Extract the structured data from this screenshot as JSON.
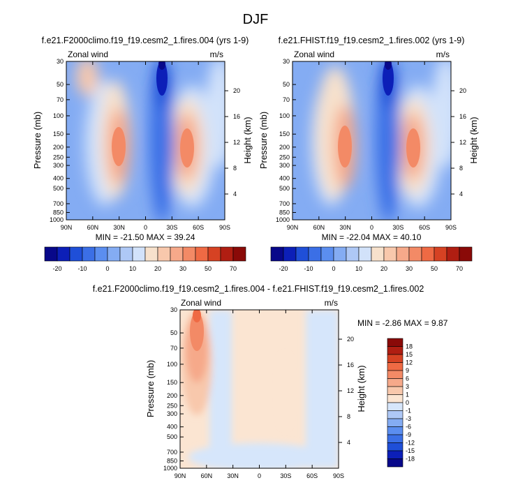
{
  "page_title": "DJF",
  "colors": {
    "panel_levels_palette": [
      "#08088a",
      "#0c1fb8",
      "#1f4fd8",
      "#3b6fe6",
      "#5b8ef0",
      "#84acf3",
      "#aec8f6",
      "#d2e2fa",
      "#f7e1cc",
      "#f8c8ac",
      "#f6a98a",
      "#f38a66",
      "#ef6a44",
      "#d64223",
      "#b01e12",
      "#8a0a08"
    ],
    "diff_levels_palette": [
      "#08088a",
      "#0c1fb8",
      "#1f4fd8",
      "#3b6fe6",
      "#5b8ef0",
      "#84acf3",
      "#aec8f6",
      "#d6e6fb",
      "#fbe5d2",
      "#f8c8ac",
      "#f6a98a",
      "#f38a66",
      "#ef6a44",
      "#d64223",
      "#b01e12",
      "#8a0a08"
    ]
  },
  "chart_data": [
    {
      "type": "heatmap",
      "title": "f.e21.F2000climo.f19_f19.cesm2_1.fires.004 (yrs 1-9)",
      "left_label": "Zonal wind",
      "right_label": "m/s",
      "ylabel": "Pressure (mb)",
      "y2label": "Height (km)",
      "x_tick_labels": [
        "90N",
        "60N",
        "30N",
        "0",
        "30S",
        "60S",
        "90S"
      ],
      "y_tick_labels": [
        "30",
        "50",
        "70",
        "100",
        "150",
        "200",
        "250",
        "300",
        "400",
        "500",
        "700",
        "850",
        "1000"
      ],
      "y2_tick_labels": [
        "20",
        "16",
        "12",
        "8",
        "4"
      ],
      "stats_text": "MIN = -21.50  MAX = 39.24",
      "min": -21.5,
      "max": 39.24,
      "colorbar_labels": [
        "-20",
        "-10",
        "0",
        "10",
        "20",
        "30",
        "50",
        "70"
      ],
      "colorbar_orientation": "horizontal"
    },
    {
      "type": "heatmap",
      "title": "f.e21.FHIST.f19_f19.cesm2_1.fires.002 (yrs 1-9)",
      "left_label": "Zonal wind",
      "right_label": "m/s",
      "ylabel": "Pressure (mb)",
      "y2label": "Height (km)",
      "x_tick_labels": [
        "90N",
        "60N",
        "30N",
        "0",
        "30S",
        "60S",
        "90S"
      ],
      "y_tick_labels": [
        "30",
        "50",
        "70",
        "100",
        "150",
        "200",
        "250",
        "300",
        "400",
        "500",
        "700",
        "850",
        "1000"
      ],
      "y2_tick_labels": [
        "20",
        "16",
        "12",
        "8",
        "4"
      ],
      "stats_text": "MIN = -22.04  MAX = 40.10",
      "min": -22.04,
      "max": 40.1,
      "colorbar_labels": [
        "-20",
        "-10",
        "0",
        "10",
        "20",
        "30",
        "50",
        "70"
      ],
      "colorbar_orientation": "horizontal"
    },
    {
      "type": "heatmap",
      "title": "f.e21.F2000climo.f19_f19.cesm2_1.fires.004 - f.e21.FHIST.f19_f19.cesm2_1.fires.002",
      "left_label": "Zonal wind",
      "right_label": "m/s",
      "ylabel": "Pressure (mb)",
      "y2label": "Height (km)",
      "x_tick_labels": [
        "90N",
        "60N",
        "30N",
        "0",
        "30S",
        "60S",
        "90S"
      ],
      "y_tick_labels": [
        "30",
        "50",
        "70",
        "100",
        "150",
        "200",
        "250",
        "300",
        "400",
        "500",
        "700",
        "850",
        "1000"
      ],
      "y2_tick_labels": [
        "20",
        "16",
        "12",
        "8",
        "4"
      ],
      "stats_text": "MIN = -2.86  MAX =  9.87",
      "min": -2.86,
      "max": 9.87,
      "colorbar_labels": [
        "18",
        "15",
        "12",
        "9",
        "6",
        "3",
        "1",
        "0",
        "-1",
        "-3",
        "-6",
        "-9",
        "-12",
        "-15",
        "-18"
      ],
      "colorbar_orientation": "vertical"
    }
  ]
}
